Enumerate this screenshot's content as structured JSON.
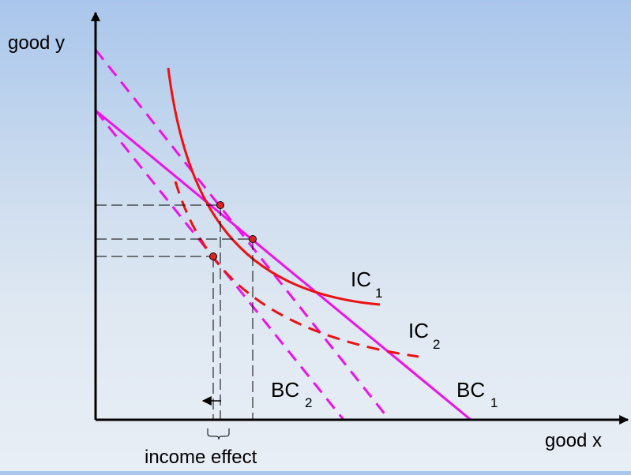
{
  "diagram": {
    "y_axis_label": "good y",
    "x_axis_label": "good x",
    "bracket_label": "income effect",
    "curves": {
      "ic1": {
        "main": "IC",
        "sub": "1"
      },
      "ic2": {
        "main": "IC",
        "sub": "2"
      },
      "bc1": {
        "main": "BC",
        "sub": "1"
      },
      "bc2": {
        "main": "BC",
        "sub": "2"
      }
    },
    "colors": {
      "indifference_curve": "#ee1111",
      "budget_line": "#ee11ee",
      "point_fill": "#dd2222",
      "axes": "#000000",
      "guides": "#000000"
    }
  }
}
